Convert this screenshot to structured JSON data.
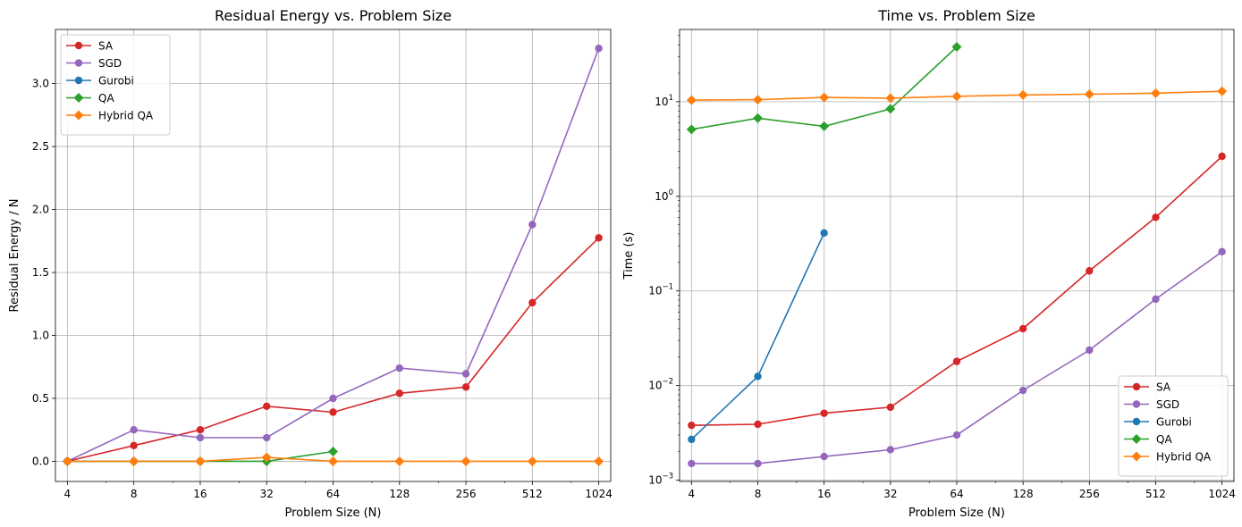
{
  "chart_data": [
    {
      "type": "line",
      "title": "Residual Energy vs. Problem Size",
      "xlabel": "Problem Size (N)",
      "ylabel": "Residual Energy / N",
      "xscale": "log2",
      "yscale": "linear",
      "ylim": [
        -0.16,
        3.43
      ],
      "grid": true,
      "legend_position": "top-left",
      "x_ticks": [
        4,
        8,
        16,
        32,
        64,
        128,
        256,
        512,
        1024
      ],
      "x_tick_labels": [
        "4",
        "8",
        "16",
        "32",
        "64",
        "128",
        "256",
        "512",
        "1024"
      ],
      "y_ticks": [
        0.0,
        0.5,
        1.0,
        1.5,
        2.0,
        2.5,
        3.0
      ],
      "y_tick_labels": [
        "0.0",
        "0.5",
        "1.0",
        "1.5",
        "2.0",
        "2.5",
        "3.0"
      ],
      "series": [
        {
          "name": "SA",
          "color": "#d62728",
          "marker": "circle",
          "x": [
            4,
            8,
            16,
            32,
            64,
            128,
            256,
            512,
            1024
          ],
          "y": [
            0.0,
            0.125,
            0.25,
            0.4375,
            0.39,
            0.54,
            0.59,
            1.26,
            1.775
          ]
        },
        {
          "name": "SGD",
          "color": "#9467bd",
          "marker": "circle",
          "x": [
            4,
            8,
            16,
            32,
            64,
            128,
            256,
            512,
            1024
          ],
          "y": [
            0.0,
            0.25,
            0.1875,
            0.1875,
            0.5,
            0.74,
            0.695,
            1.88,
            3.28
          ]
        },
        {
          "name": "Gurobi",
          "color": "#1f77b4",
          "marker": "circle",
          "x": [
            4,
            8,
            16
          ],
          "y": [
            0.0,
            0.0,
            0.0
          ]
        },
        {
          "name": "QA",
          "color": "#2ca02c",
          "marker": "diamond",
          "x": [
            4,
            8,
            16,
            32,
            64
          ],
          "y": [
            0.0,
            0.0,
            0.0,
            0.0,
            0.078
          ]
        },
        {
          "name": "Hybrid QA",
          "color": "#ff7f0e",
          "marker": "diamond",
          "x": [
            4,
            8,
            16,
            32,
            64,
            128,
            256,
            512,
            1024
          ],
          "y": [
            0.0,
            0.0,
            0.0,
            0.031,
            0.0,
            0.0,
            0.0,
            0.0,
            0.0
          ]
        }
      ]
    },
    {
      "type": "line",
      "title": "Time vs. Problem Size",
      "xlabel": "Problem Size (N)",
      "ylabel": "Time (s)",
      "xscale": "log2",
      "yscale": "log10",
      "ylim": [
        0.00097,
        58
      ],
      "grid": true,
      "legend_position": "bottom-right",
      "x_ticks": [
        4,
        8,
        16,
        32,
        64,
        128,
        256,
        512,
        1024
      ],
      "x_tick_labels": [
        "4",
        "8",
        "16",
        "32",
        "64",
        "128",
        "256",
        "512",
        "1024"
      ],
      "y_ticks": [
        0.001,
        0.01,
        0.1,
        1,
        10
      ],
      "y_tick_labels": [
        [
          "10",
          "−3"
        ],
        [
          "10",
          "−2"
        ],
        [
          "10",
          "−1"
        ],
        [
          "10",
          "0"
        ],
        [
          "10",
          "1"
        ]
      ],
      "series": [
        {
          "name": "SA",
          "color": "#d62728",
          "marker": "circle",
          "x": [
            4,
            8,
            16,
            32,
            64,
            128,
            256,
            512,
            1024
          ],
          "y": [
            0.0038,
            0.0039,
            0.0051,
            0.0059,
            0.018,
            0.04,
            0.163,
            0.6,
            2.65
          ]
        },
        {
          "name": "SGD",
          "color": "#9467bd",
          "marker": "circle",
          "x": [
            4,
            8,
            16,
            32,
            64,
            128,
            256,
            512,
            1024
          ],
          "y": [
            0.0015,
            0.0015,
            0.00178,
            0.0021,
            0.003,
            0.0089,
            0.0237,
            0.082,
            0.26
          ]
        },
        {
          "name": "Gurobi",
          "color": "#1f77b4",
          "marker": "circle",
          "x": [
            4,
            8,
            16
          ],
          "y": [
            0.0027,
            0.0125,
            0.41
          ]
        },
        {
          "name": "QA",
          "color": "#2ca02c",
          "marker": "diamond",
          "x": [
            4,
            8,
            16,
            32,
            64
          ],
          "y": [
            5.1,
            6.7,
            5.5,
            8.4,
            38
          ]
        },
        {
          "name": "Hybrid QA",
          "color": "#ff7f0e",
          "marker": "diamond",
          "x": [
            4,
            8,
            16,
            32,
            64,
            128,
            256,
            512,
            1024
          ],
          "y": [
            10.4,
            10.5,
            11.1,
            10.9,
            11.4,
            11.8,
            12.0,
            12.3,
            12.9
          ]
        }
      ]
    }
  ]
}
